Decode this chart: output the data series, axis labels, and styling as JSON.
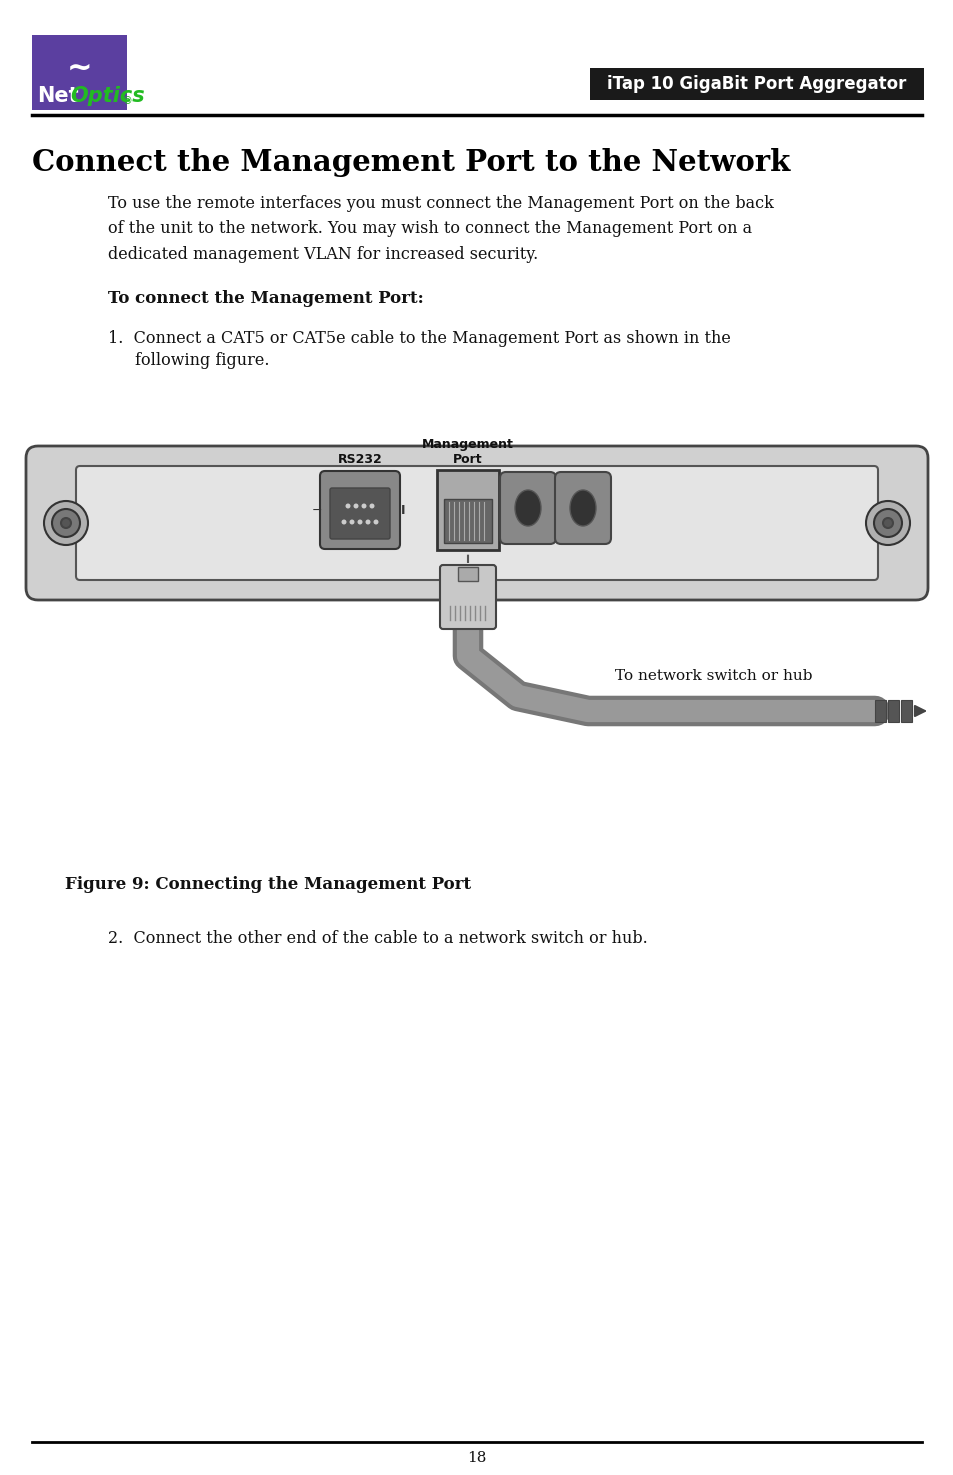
{
  "page_bg": "#ffffff",
  "logo_box_color": "#5b3fa0",
  "header_bar_color": "#1a1a1a",
  "header_text": "iTap 10 GigaBit Port Aggregator",
  "header_text_color": "#ffffff",
  "title": "Connect the Management Port to the Network",
  "title_color": "#000000",
  "body_text1": "To use the remote interfaces you must connect the Management Port on the back\nof the unit to the network. You may wish to connect the Management Port on a\ndedicated management VLAN for increased security.",
  "subheading": "To connect the Management Port:",
  "step1_a": "1.  Connect a CAT5 or CAT5e cable to the Management Port as shown in the",
  "step1_b": "following figure.",
  "step2": "2.  Connect the other end of the cable to a network switch or hub.",
  "figure_caption": "Figure 9: Connecting the Management Port",
  "cable_label": "To network switch or hub",
  "rs232_label": "RS232",
  "mgmt_label": "Management\nPort",
  "page_number": "18",
  "separator_color": "#000000"
}
